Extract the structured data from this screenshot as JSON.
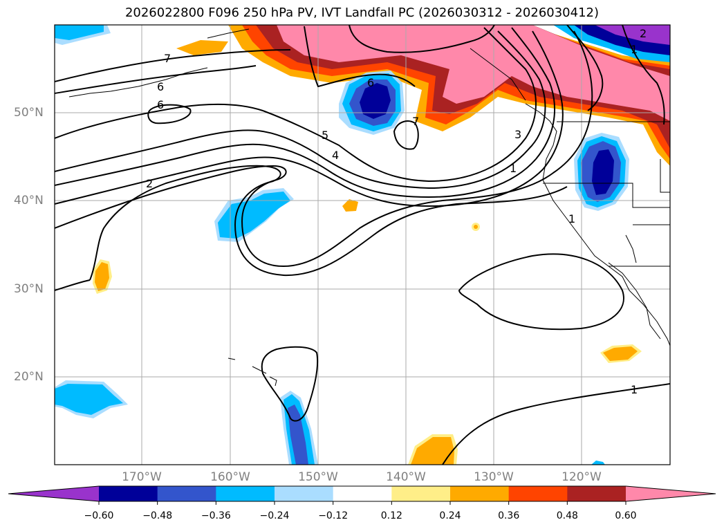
{
  "title": "2026022800 F096 250 hPa PV, IVT Landfall PC (2026030312 - 2026030412)",
  "lat_labels": [
    "50°N",
    "40°N",
    "30°N",
    "20°N"
  ],
  "lon_labels": [
    "170°W",
    "160°W",
    "150°W",
    "140°W",
    "130°W",
    "120°W"
  ],
  "colorbar": {
    "colors": [
      "#9933cc",
      "#000099",
      "#3355cc",
      "#00bbff",
      "#aaddff",
      "#ffffff",
      "#ffee88",
      "#ffaa00",
      "#ff4400",
      "#aa2222",
      "#ff88aa"
    ],
    "tick_labels": [
      "−0.60",
      "−0.48",
      "−0.36",
      "−0.24",
      "−0.12",
      "0.12",
      "0.24",
      "0.36",
      "0.48",
      "0.60"
    ]
  },
  "contour_labels": [
    "7",
    "6",
    "6",
    "6",
    "5",
    "4",
    "3",
    "2",
    "2",
    "1",
    "1",
    "1",
    "1",
    "7"
  ]
}
